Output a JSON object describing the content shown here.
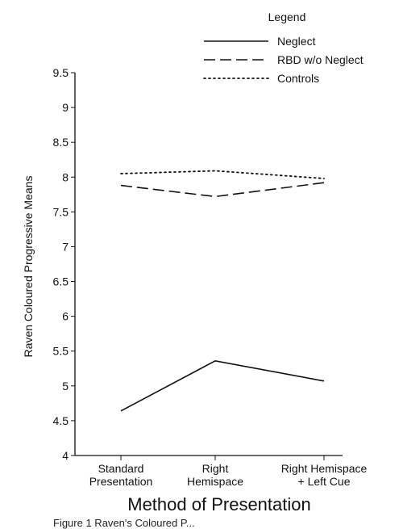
{
  "chart_data": {
    "type": "line",
    "categories": [
      "Standard\nPresentation",
      "Right\nHemispace",
      "Right Hemispace\n+ Left Cue"
    ],
    "series": [
      {
        "name": "Neglect",
        "values": [
          4.64,
          5.36,
          5.07
        ],
        "dash": "solid"
      },
      {
        "name": "RBD w/o Neglect",
        "values": [
          7.88,
          7.72,
          7.92
        ],
        "dash": "dashed"
      },
      {
        "name": "Controls",
        "values": [
          8.05,
          8.09,
          7.98
        ],
        "dash": "dotted"
      }
    ],
    "xlabel": "Method of Presentation",
    "ylabel": "Raven Coloured Progressive Means",
    "ylim": [
      4,
      9.5
    ],
    "yticks": [
      "4",
      "4.5",
      "5",
      "5.5",
      "6",
      "6.5",
      "7",
      "7.5",
      "8",
      "8.5",
      "9",
      "9.5"
    ],
    "legend_title": "Legend",
    "legend_position": "top-right",
    "grid": false,
    "caption": "Figure 1 Raven's Coloured P..."
  }
}
